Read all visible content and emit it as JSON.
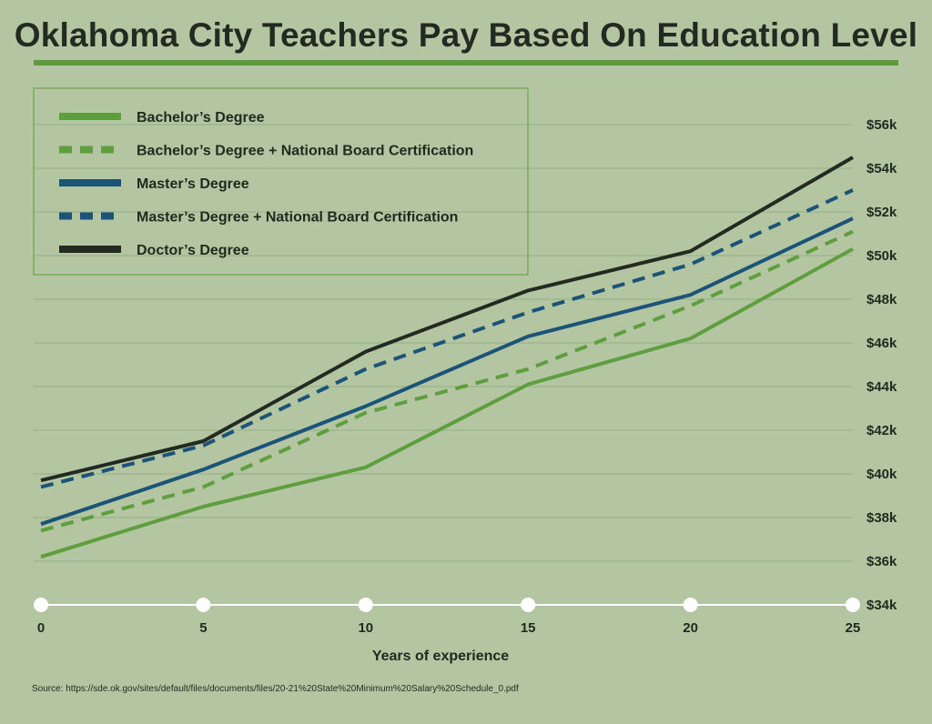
{
  "chart_data": {
    "type": "line",
    "title": "Oklahoma City Teachers Pay Based On Education Level",
    "xlabel": "Years of experience",
    "ylabel": "",
    "x": [
      0,
      5,
      10,
      15,
      20,
      25
    ],
    "xlim": [
      0,
      25
    ],
    "ylim": [
      34000,
      56000
    ],
    "y_ticks": [
      34000,
      36000,
      38000,
      40000,
      42000,
      44000,
      46000,
      48000,
      50000,
      52000,
      54000,
      56000
    ],
    "y_tick_labels": [
      "$34k",
      "$36k",
      "$38k",
      "$40k",
      "$42k",
      "$44k",
      "$46k",
      "$48k",
      "$50k",
      "$52k",
      "$54k",
      "$56k"
    ],
    "x_tick_labels": [
      "0",
      "5",
      "10",
      "15",
      "20",
      "25"
    ],
    "grid": "horizontal",
    "legend_position": "top-left",
    "series": [
      {
        "name": "Bachelor’s Degree",
        "values": [
          36200,
          38500,
          40300,
          44100,
          46200,
          50300
        ],
        "color": "#5f9e3f",
        "dashed": false
      },
      {
        "name": "Bachelor’s Degree + National Board Certification",
        "values": [
          37400,
          39400,
          42800,
          44800,
          47700,
          51100
        ],
        "color": "#5f9e3f",
        "dashed": true
      },
      {
        "name": "Master’s Degree",
        "values": [
          37700,
          40200,
          43100,
          46300,
          48200,
          51700
        ],
        "color": "#1b5379",
        "dashed": false
      },
      {
        "name": "Master’s Degree + National Board Certification",
        "values": [
          39400,
          41300,
          44800,
          47400,
          49600,
          53000
        ],
        "color": "#1b5379",
        "dashed": true
      },
      {
        "name": "Doctor’s Degree",
        "values": [
          39700,
          41500,
          45600,
          48400,
          50200,
          54500
        ],
        "color": "#222a22",
        "dashed": false
      }
    ],
    "source": "Source: https://sde.ok.gov/sites/default/files/documents/files/20-21%20State%20Minimum%20Salary%20Schedule_0.pdf"
  },
  "colors": {
    "background": "#b3c6a1",
    "accent": "#5e9b3f",
    "gridline": "#92b083",
    "legend_border": "#6aa64a"
  }
}
